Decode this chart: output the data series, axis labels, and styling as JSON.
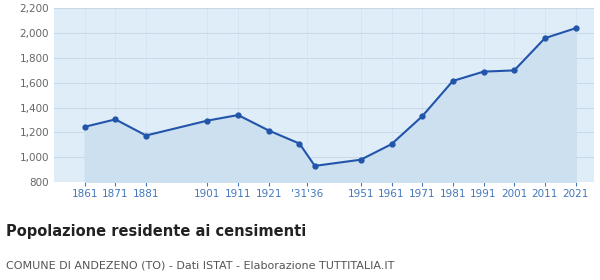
{
  "years": [
    1861,
    1871,
    1881,
    1901,
    1911,
    1921,
    1931,
    1936,
    1951,
    1961,
    1971,
    1981,
    1991,
    2001,
    2011,
    2021
  ],
  "population": [
    1245,
    1305,
    1175,
    1295,
    1340,
    1215,
    1110,
    930,
    980,
    1105,
    1330,
    1615,
    1690,
    1700,
    1960,
    2040
  ],
  "x_tick_positions": [
    1861,
    1871,
    1881,
    1901,
    1911,
    1921,
    1933.5,
    1951,
    1961,
    1971,
    1981,
    1991,
    2001,
    2011,
    2021
  ],
  "x_tick_labels": [
    "1861",
    "1871",
    "1881",
    "1901",
    "1911",
    "1921",
    "'31'36",
    "1951",
    "1961",
    "1971",
    "1981",
    "1991",
    "2001",
    "2011",
    "2021"
  ],
  "ylim": [
    800,
    2200
  ],
  "yticks": [
    800,
    1000,
    1200,
    1400,
    1600,
    1800,
    2000,
    2200
  ],
  "xlim": [
    1851,
    2027
  ],
  "line_color": "#2255aa",
  "fill_color": "#cce0f0",
  "marker_color": "#2255aa",
  "grid_color": "#c8d8e8",
  "background_color": "#deedf8",
  "title": "Popolazione residente ai censimenti",
  "subtitle": "COMUNE DI ANDEZENO (TO) - Dati ISTAT - Elaborazione TUTTITALIA.IT",
  "title_fontsize": 10.5,
  "subtitle_fontsize": 8,
  "tick_color": "#4477bb",
  "ytick_color": "#666666"
}
